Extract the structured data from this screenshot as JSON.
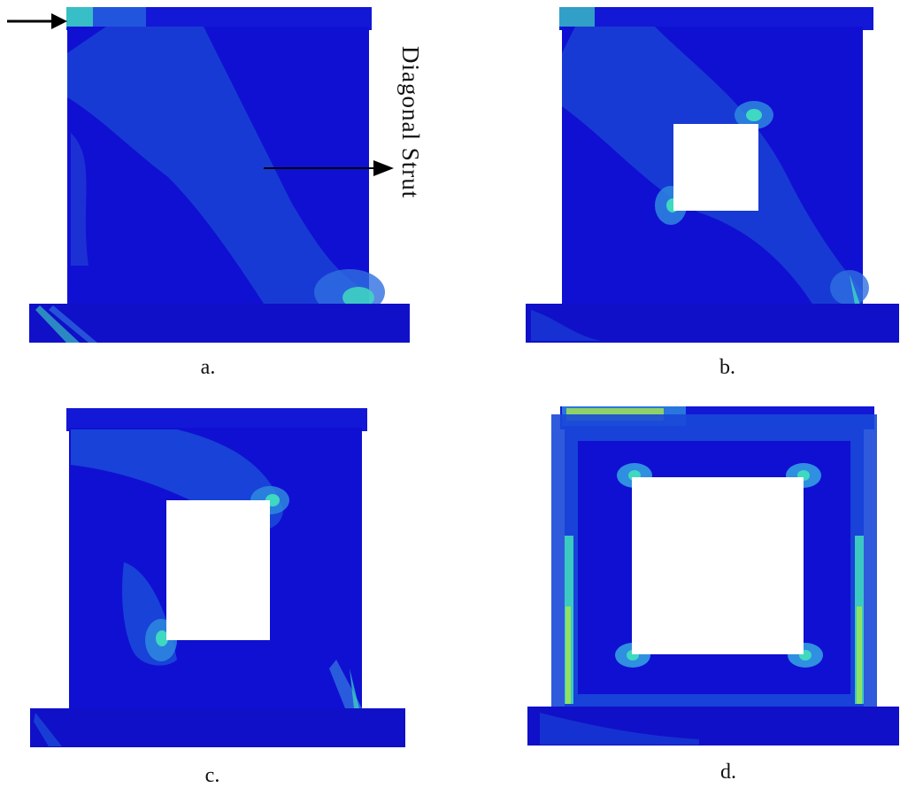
{
  "panels": [
    {
      "id": "a",
      "caption": "a.",
      "opening": "none"
    },
    {
      "id": "b",
      "caption": "b.",
      "opening": "small"
    },
    {
      "id": "c",
      "caption": "c.",
      "opening": "medium"
    },
    {
      "id": "d",
      "caption": "d.",
      "opening": "large"
    }
  ],
  "annotation": {
    "label": "Diagonal Strut"
  },
  "colors": {
    "background": "#ffffff",
    "contour_low": "#1010d8",
    "contour_mid": "#1a4fd8",
    "contour_high": "#2f8fe0",
    "contour_peak": "#3fd8c0",
    "contour_max": "#a8e84a",
    "arrow": "#000000"
  }
}
